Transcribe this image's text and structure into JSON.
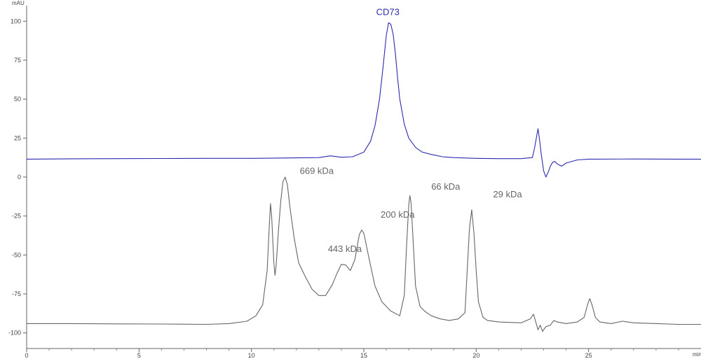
{
  "chart_data": {
    "type": "line",
    "title": "",
    "xlabel": "min",
    "ylabel": "mAU",
    "xlim": [
      0,
      30
    ],
    "ylim": [
      -110,
      110
    ],
    "x_ticks": [
      {
        "value": 0,
        "label": "0"
      },
      {
        "value": 5,
        "label": "5"
      },
      {
        "value": 10,
        "label": "10"
      },
      {
        "value": 15,
        "label": "15"
      },
      {
        "value": 20,
        "label": "20"
      },
      {
        "value": 25,
        "label": "25"
      }
    ],
    "y_ticks": [
      {
        "value": 100,
        "label": "100"
      },
      {
        "value": 75,
        "label": "75"
      },
      {
        "value": 50,
        "label": "50"
      },
      {
        "value": 25,
        "label": "25"
      },
      {
        "value": 0,
        "label": "0"
      },
      {
        "value": -25,
        "label": "-25"
      },
      {
        "value": -50,
        "label": "-50"
      },
      {
        "value": -75,
        "label": "-75"
      },
      {
        "value": -100,
        "label": "-100"
      }
    ],
    "grid": false,
    "series": [
      {
        "color": "#2b2bb0",
        "x": [
          0,
          2,
          4,
          6,
          8,
          10,
          12,
          13,
          13.5,
          14,
          14.5,
          15,
          15.3,
          15.5,
          15.7,
          15.85,
          16.0,
          16.1,
          16.2,
          16.3,
          16.4,
          16.5,
          16.6,
          16.8,
          17.0,
          17.3,
          17.6,
          18.0,
          18.5,
          19.0,
          20,
          21,
          22,
          22.5,
          22.6,
          22.7,
          22.75,
          22.8,
          22.9,
          23.0,
          23.1,
          23.2,
          23.3,
          23.4,
          23.5,
          23.6,
          23.8,
          24.0,
          24.5,
          25,
          27,
          29,
          30
        ],
        "y": [
          11.5,
          11.7,
          11.8,
          11.9,
          12.0,
          12.0,
          12.3,
          12.5,
          13.6,
          12.7,
          13.0,
          16,
          23,
          33,
          50,
          70,
          91,
          99,
          98,
          92,
          80,
          64,
          50,
          34,
          25,
          19,
          16,
          14.5,
          13,
          12.5,
          12.0,
          11.8,
          11.8,
          12.5,
          19,
          27,
          31,
          26,
          14,
          4,
          0,
          3,
          7,
          9.5,
          10,
          8.5,
          7,
          9,
          11,
          11.5,
          11.6,
          11.5,
          11.5
        ]
      },
      {
        "color": "#666666",
        "x": [
          0,
          2,
          4,
          6,
          8,
          9,
          9.8,
          10.2,
          10.5,
          10.7,
          10.8,
          10.85,
          10.9,
          11.0,
          11.05,
          11.1,
          11.2,
          11.3,
          11.4,
          11.5,
          11.6,
          11.7,
          11.9,
          12.1,
          12.4,
          12.7,
          13.0,
          13.3,
          13.6,
          13.8,
          14.0,
          14.2,
          14.4,
          14.6,
          14.8,
          14.9,
          15.0,
          15.2,
          15.5,
          15.8,
          16.2,
          16.6,
          16.8,
          16.9,
          17.0,
          17.05,
          17.1,
          17.2,
          17.3,
          17.5,
          17.7,
          17.8,
          18.0,
          18.4,
          18.8,
          19.2,
          19.5,
          19.6,
          19.7,
          19.8,
          19.9,
          20.0,
          20.1,
          20.3,
          20.5,
          21,
          22,
          22.4,
          22.55,
          22.65,
          22.75,
          22.85,
          22.95,
          23.1,
          23.3,
          23.45,
          23.6,
          24.0,
          24.5,
          24.8,
          24.95,
          25.05,
          25.15,
          25.3,
          25.5,
          26,
          26.5,
          27,
          28,
          29,
          30
        ],
        "y": [
          -94,
          -94,
          -94.2,
          -94.3,
          -94.5,
          -94,
          -92.5,
          -89,
          -82,
          -60,
          -30,
          -17,
          -25,
          -55,
          -63,
          -57,
          -35,
          -16,
          -3,
          0,
          -5,
          -18,
          -39,
          -55,
          -64,
          -72,
          -76,
          -76,
          -69,
          -62,
          -56,
          -56.5,
          -60,
          -53,
          -37,
          -34,
          -36,
          -50,
          -70,
          -80,
          -86,
          -89,
          -76,
          -45,
          -18,
          -12,
          -16,
          -42,
          -70,
          -83,
          -86,
          -87,
          -89,
          -91,
          -92,
          -91,
          -87,
          -60,
          -33,
          -21,
          -36,
          -60,
          -80,
          -90,
          -92,
          -93,
          -93.5,
          -91,
          -88,
          -93,
          -98,
          -95,
          -99,
          -96,
          -95,
          -92,
          -93,
          -94,
          -93,
          -90,
          -82,
          -78,
          -82,
          -90,
          -93,
          -94,
          -92.5,
          -93.5,
          -94,
          -94.5,
          -94.5
        ]
      }
    ],
    "annotations": [
      {
        "text": "CD73",
        "x": 15.55,
        "y": 104,
        "color": "#2b2bb0"
      },
      {
        "text": "669 kDa",
        "x": 12.15,
        "y": 2,
        "color": "#666666"
      },
      {
        "text": "443 kDa",
        "x": 13.4,
        "y": -48,
        "color": "#666666"
      },
      {
        "text": "200 kDa",
        "x": 15.75,
        "y": -26,
        "color": "#666666"
      },
      {
        "text": "66 kDa",
        "x": 18.0,
        "y": -8,
        "color": "#666666"
      },
      {
        "text": "29 kDa",
        "x": 20.75,
        "y": -13,
        "color": "#666666"
      }
    ]
  }
}
